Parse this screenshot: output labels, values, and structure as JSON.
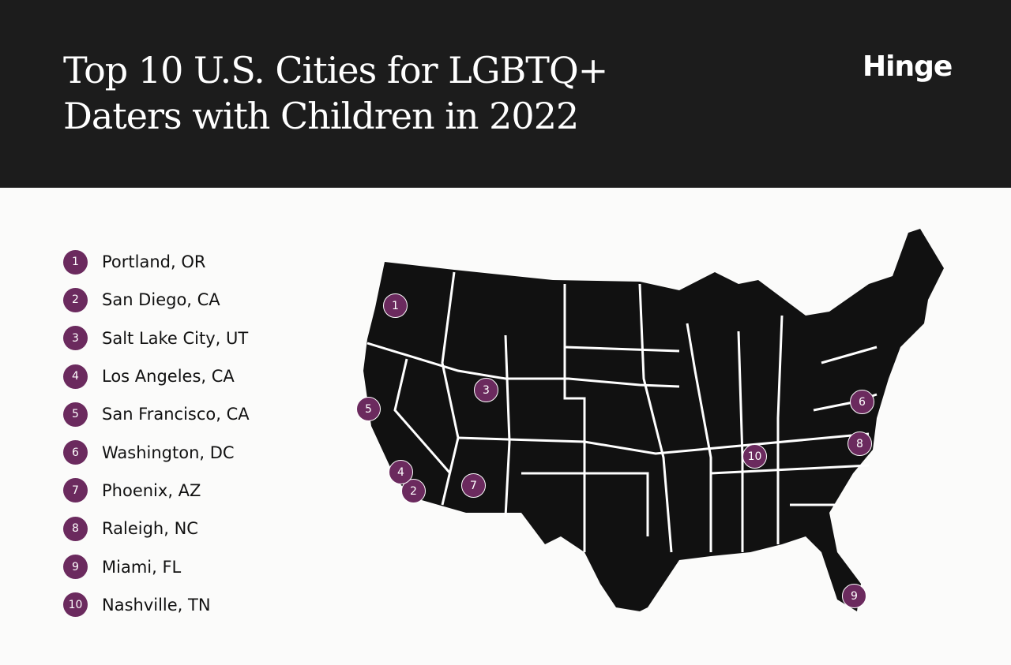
{
  "header": {
    "title": "Top 10 U.S. Cities for LGBTQ+ Daters with Children in 2022",
    "logo": "Hinge"
  },
  "colors": {
    "accent": "#6b2a5e",
    "header_bg": "#1c1c1c",
    "map": "#111111"
  },
  "cities": [
    {
      "rank": "1",
      "name": "Portland, OR"
    },
    {
      "rank": "2",
      "name": "San Diego, CA"
    },
    {
      "rank": "3",
      "name": "Salt Lake City, UT"
    },
    {
      "rank": "4",
      "name": "Los Angeles, CA"
    },
    {
      "rank": "5",
      "name": "San Francisco, CA"
    },
    {
      "rank": "6",
      "name": "Washington, DC"
    },
    {
      "rank": "7",
      "name": "Phoenix, AZ"
    },
    {
      "rank": "8",
      "name": "Raleigh, NC"
    },
    {
      "rank": "9",
      "name": "Miami, FL"
    },
    {
      "rank": "10",
      "name": "Nashville, TN"
    }
  ]
}
